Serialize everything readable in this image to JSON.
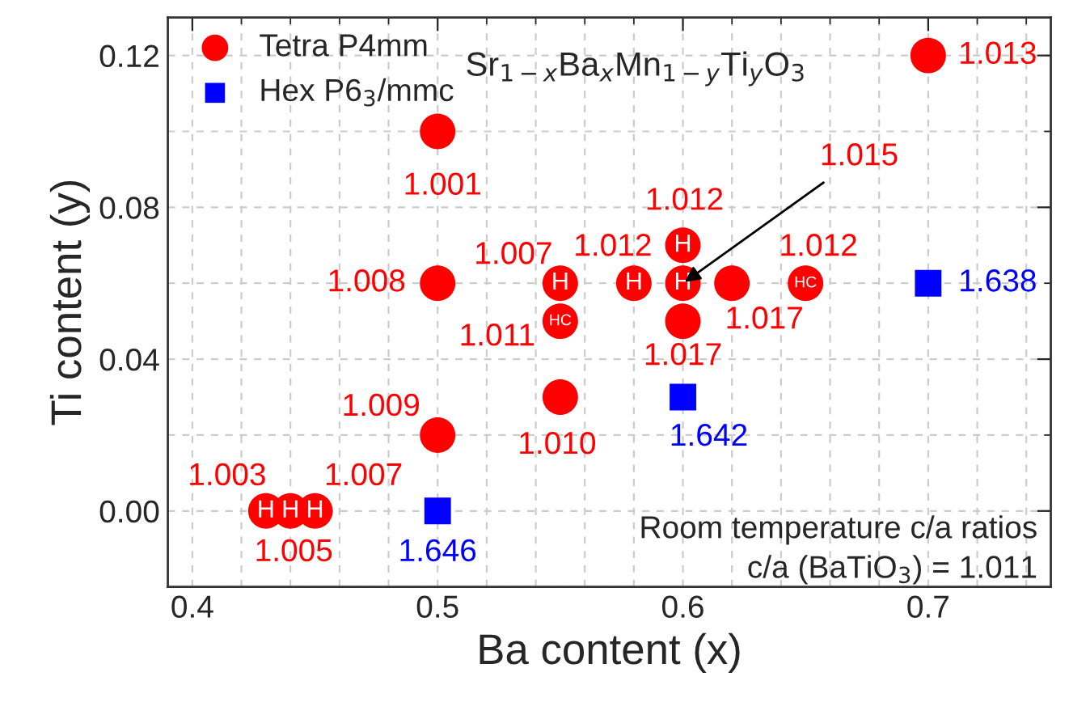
{
  "chart_data": {
    "type": "scatter",
    "xlabel": "Ba content (x)",
    "ylabel": "Ti content (y)",
    "xlim": [
      0.39,
      0.75
    ],
    "xticks": [
      0.4,
      0.5,
      0.6,
      0.7
    ],
    "ylim": [
      -0.02,
      0.13
    ],
    "yticks": [
      {
        "value": 0,
        "label": "0.00"
      },
      0.04,
      0.08,
      0.12
    ],
    "grid": true,
    "legend": "top left",
    "series": [
      {
        "name": "Tetra P4mm",
        "color": "#ff0000",
        "marker": "circle",
        "x": [
          0.43,
          0.44,
          0.45,
          0.5,
          0.5,
          0.5,
          0.55,
          0.55,
          0.55,
          0.58,
          0.6,
          0.6,
          0.6,
          0.62,
          0.65,
          0.7
        ],
        "values": [
          0,
          0,
          0,
          0.02,
          0.06,
          0.1,
          0.03,
          0.05,
          0.06,
          0.06,
          0.07,
          0.06,
          0.05,
          0.06,
          0.06,
          0.12
        ]
      },
      {
        "name": "Hex P6$_{3}$/mmc",
        "color": "#0000ff",
        "marker": "square",
        "x": [
          0.5,
          0.6,
          0.7
        ],
        "values": [
          0,
          0.03,
          0.06
        ]
      }
    ],
    "annotations": [
      "Sr$_{1−x}$Ba$_{x}$Mn$_{1−y}$Ti$_{y}$O$_{3}$",
      "Room temperature c/a ratios",
      "c/a (BaTiO$_{3}$) = 1.011",
      {
        "text": "1.003",
        "x": 0.43,
        "y": 0
      },
      {
        "text": "1.005",
        "x": 0.44,
        "y": 0
      },
      {
        "text": "1.007",
        "x": 0.45,
        "y": 0
      },
      {
        "text": "1.009",
        "x": 0.5,
        "y": 0.02
      },
      {
        "text": "1.008",
        "x": 0.5,
        "y": 0.06
      },
      {
        "text": "1.001",
        "x": 0.5,
        "y": 0.1
      },
      {
        "text": "1.010",
        "x": 0.55,
        "y": 0.03
      },
      {
        "text": "1.011",
        "x": 0.55,
        "y": 0.05
      },
      {
        "text": "1.007",
        "x": 0.55,
        "y": 0.06
      },
      {
        "text": "1.012",
        "x": 0.58,
        "y": 0.06
      },
      {
        "text": "1.012",
        "x": 0.6,
        "y": 0.07
      },
      {
        "text": "1.015",
        "x": 0.6,
        "y": 0.06
      },
      {
        "text": "1.017",
        "x": 0.6,
        "y": 0.05
      },
      {
        "text": "1.017",
        "x": 0.62,
        "y": 0.06
      },
      {
        "text": "1.012",
        "x": 0.65,
        "y": 0.06
      },
      {
        "text": "1.013",
        "x": 0.7,
        "y": 0.12
      },
      {
        "text": "1.646",
        "x": 0.5,
        "y": 0
      },
      {
        "text": "1.642",
        "x": 0.6,
        "y": 0.03
      },
      {
        "text": "1.638",
        "x": 0.7,
        "y": 0.06
      },
      {
        "text": "H",
        "x": 0.43,
        "y": 0
      },
      {
        "text": "H",
        "x": 0.44,
        "y": 0
      },
      {
        "text": "H",
        "x": 0.45,
        "y": 0
      },
      {
        "text": "HC",
        "x": 0.55,
        "y": 0.05
      },
      {
        "text": "H",
        "x": 0.55,
        "y": 0.06
      },
      {
        "text": "H",
        "x": 0.58,
        "y": 0.06
      },
      {
        "text": "H",
        "x": 0.6,
        "y": 0.07
      },
      {
        "text": "H",
        "x": 0.6,
        "y": 0.06
      },
      {
        "text": "HC",
        "x": 0.65,
        "y": 0.06
      }
    ]
  }
}
